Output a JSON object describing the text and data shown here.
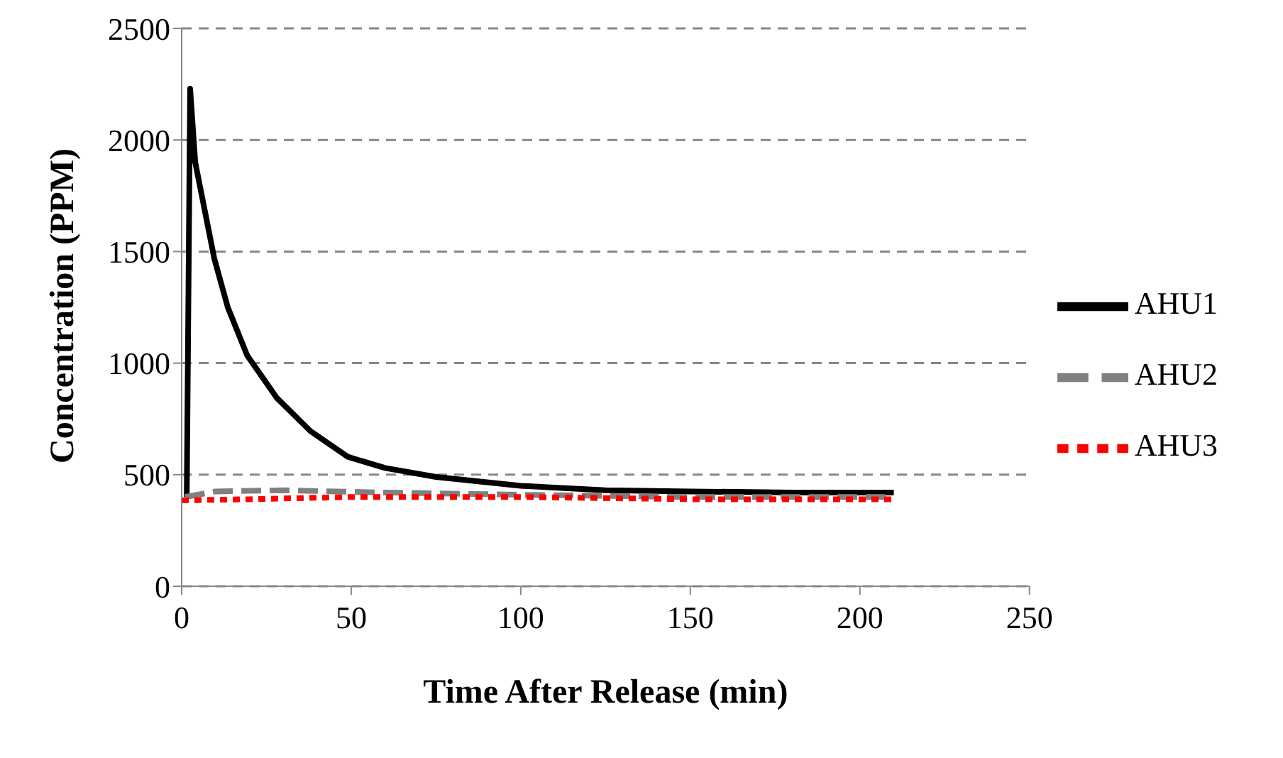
{
  "chart_data": {
    "type": "line",
    "xlabel": "Time After Release (min)",
    "ylabel": "Concentration (PPM)",
    "xlim": [
      0,
      250
    ],
    "xticks": [
      0,
      50,
      100,
      150,
      200,
      250
    ],
    "ylim": [
      0,
      2500
    ],
    "yticks": [
      0,
      500,
      1000,
      1500,
      2000,
      2500
    ],
    "grid": "y",
    "legend": "right",
    "marker": "none",
    "series": [
      {
        "name": "AHU1",
        "color": "#000000",
        "line_style": "solid",
        "x": [
          1.5,
          2.5,
          4,
          6.6,
          9.6,
          13.6,
          19.3,
          28,
          38,
          49,
          60,
          75,
          100,
          125,
          150,
          180,
          210
        ],
        "values": [
          400,
          2230,
          1900,
          1700,
          1470,
          1250,
          1035,
          845,
          695,
          580,
          530,
          490,
          450,
          430,
          425,
          420,
          420
        ]
      },
      {
        "name": "AHU2",
        "color": "#808080",
        "line_style": "dashed",
        "x": [
          1,
          10,
          30,
          60,
          100,
          150,
          210
        ],
        "values": [
          400,
          425,
          430,
          420,
          410,
          400,
          400
        ]
      },
      {
        "name": "AHU3",
        "color": "#ff0000",
        "line_style": "dotted",
        "x": [
          0,
          20,
          50,
          100,
          150,
          210
        ],
        "values": [
          385,
          390,
          400,
          400,
          390,
          390
        ]
      }
    ]
  }
}
